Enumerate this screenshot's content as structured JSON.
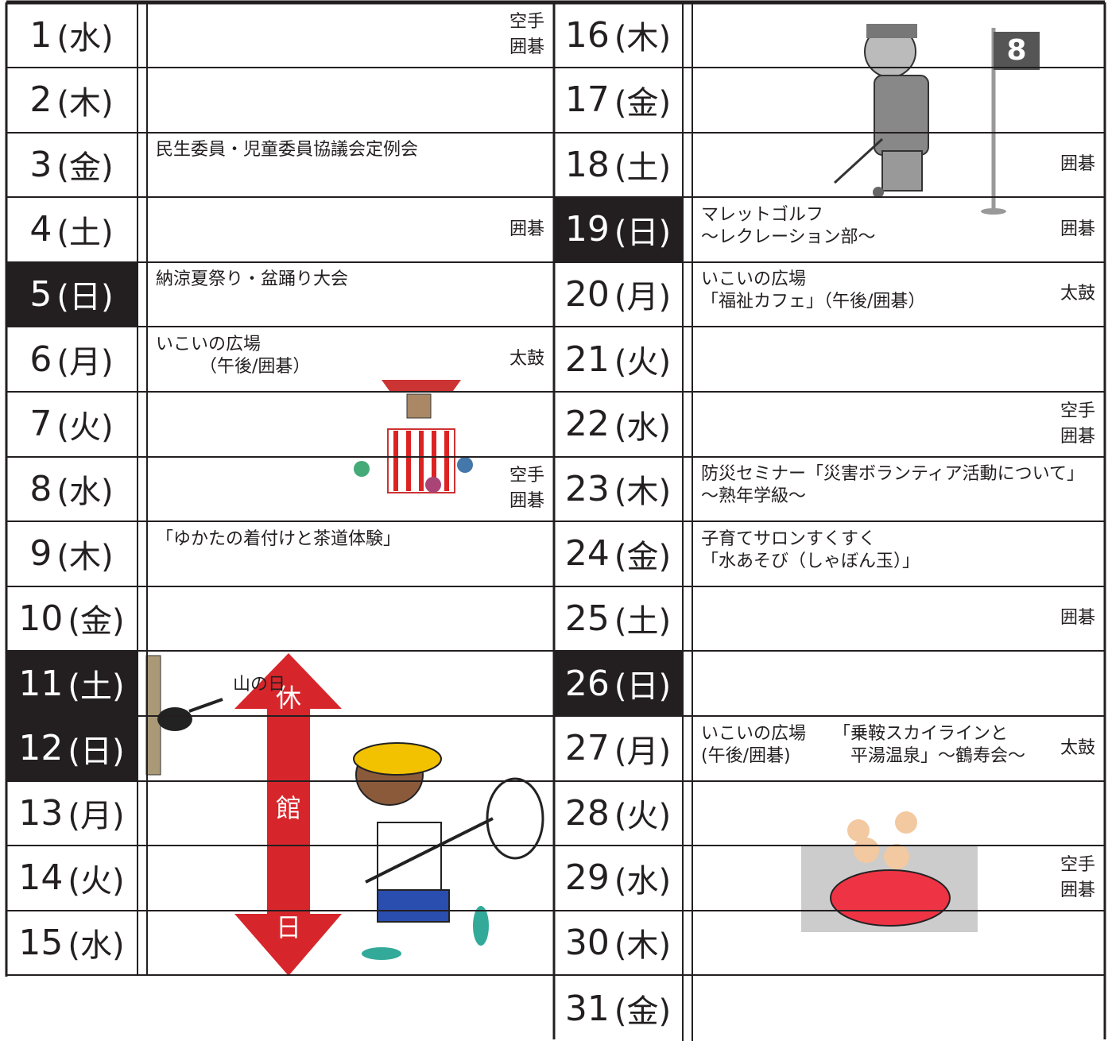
{
  "columns": [
    {
      "rows": [
        {
          "day": "1",
          "weekday": "(水)",
          "side": [
            "空手",
            "囲碁"
          ]
        },
        {
          "day": "2",
          "weekday": "(木)"
        },
        {
          "day": "3",
          "weekday": "(金)",
          "main": [
            [
              "民生委員・児童委員協議会定例会"
            ]
          ]
        },
        {
          "day": "4",
          "weekday": "(土)",
          "side": [
            "囲碁"
          ]
        },
        {
          "day": "5",
          "weekday": "(日)",
          "dark": true,
          "main": [
            [
              "納涼夏祭り・盆踊り大会"
            ]
          ]
        },
        {
          "day": "6",
          "weekday": "(月)",
          "main": [
            [
              "いこいの広場",
              "　　　（午後/囲碁）"
            ]
          ],
          "side": [
            "太鼓"
          ]
        },
        {
          "day": "7",
          "weekday": "(火)"
        },
        {
          "day": "8",
          "weekday": "(水)",
          "side": [
            "空手",
            "囲碁"
          ]
        },
        {
          "day": "9",
          "weekday": "(木)",
          "main": [
            [
              "「ゆかたの着付けと茶道体験」"
            ]
          ]
        },
        {
          "day": "10",
          "weekday": "(金)"
        },
        {
          "day": "11",
          "weekday": "(土)",
          "dark": true,
          "main": [
            [
              "山の日"
            ]
          ]
        },
        {
          "day": "12",
          "weekday": "(日)",
          "dark": true
        },
        {
          "day": "13",
          "weekday": "(月)"
        },
        {
          "day": "14",
          "weekday": "(火)"
        },
        {
          "day": "15",
          "weekday": "(水)"
        }
      ]
    },
    {
      "rows": [
        {
          "day": "16",
          "weekday": "(木)"
        },
        {
          "day": "17",
          "weekday": "(金)"
        },
        {
          "day": "18",
          "weekday": "(土)",
          "side": [
            "囲碁"
          ]
        },
        {
          "day": "19",
          "weekday": "(日)",
          "dark": true,
          "main": [
            [
              "マレットゴルフ",
              "〜レクレーション部〜"
            ]
          ],
          "side": [
            "囲碁"
          ]
        },
        {
          "day": "20",
          "weekday": "(月)",
          "main": [
            [
              "いこいの広場",
              "「福祉カフェ」（午後/囲碁）"
            ]
          ],
          "side": [
            "太鼓"
          ]
        },
        {
          "day": "21",
          "weekday": "(火)"
        },
        {
          "day": "22",
          "weekday": "(水)",
          "side": [
            "空手",
            "囲碁"
          ]
        },
        {
          "day": "23",
          "weekday": "(木)",
          "main": [
            [
              "防災セミナー「災害ボランティア活動について」",
              "〜熟年学級〜"
            ]
          ]
        },
        {
          "day": "24",
          "weekday": "(金)",
          "main": [
            [
              "子育てサロンすくすく",
              "「水あそび（しゃぼん玉）」"
            ]
          ]
        },
        {
          "day": "25",
          "weekday": "(土)",
          "side": [
            "囲碁"
          ]
        },
        {
          "day": "26",
          "weekday": "(日)",
          "dark": true
        },
        {
          "day": "27",
          "weekday": "(月)",
          "main": [
            [
              "いこいの広場",
              "(午後/囲碁)"
            ],
            [
              "「乗鞍スカイラインと",
              "　平湯温泉」〜鶴寿会〜"
            ]
          ],
          "side": [
            "太鼓"
          ]
        },
        {
          "day": "28",
          "weekday": "(火)"
        },
        {
          "day": "29",
          "weekday": "(水)",
          "side": [
            "空手",
            "囲碁"
          ]
        },
        {
          "day": "30",
          "weekday": "(木)"
        },
        {
          "day": "31",
          "weekday": "(金)"
        }
      ]
    }
  ],
  "closure": [
    "休",
    "館",
    "日"
  ],
  "flag_number": "8"
}
